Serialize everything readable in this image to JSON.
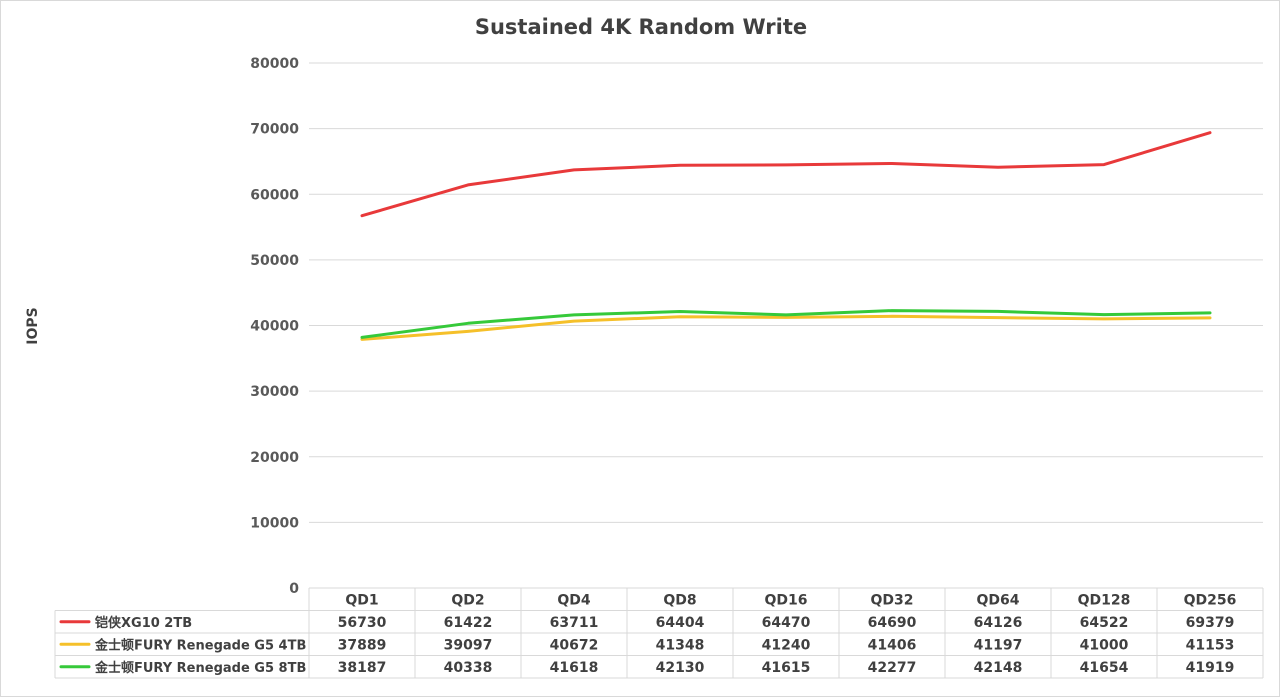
{
  "chart_data": {
    "type": "line",
    "title": "Sustained 4K Random Write",
    "xlabel": "",
    "ylabel": "IOPS",
    "ylim": [
      0,
      80000
    ],
    "yticks": [
      0,
      10000,
      20000,
      30000,
      40000,
      50000,
      60000,
      70000,
      80000
    ],
    "grid": true,
    "legend": "data-table-bottom",
    "categories": [
      "QD1",
      "QD2",
      "QD4",
      "QD8",
      "QD16",
      "QD32",
      "QD64",
      "QD128",
      "QD256"
    ],
    "series": [
      {
        "name": "铠侠XG10 2TB",
        "color": "#e8393a",
        "values": [
          56730,
          61422,
          63711,
          64404,
          64470,
          64690,
          64126,
          64522,
          69379
        ]
      },
      {
        "name": "金士顿FURY Renegade G5 4TB",
        "color": "#f5c02a",
        "values": [
          37889,
          39097,
          40672,
          41348,
          41240,
          41406,
          41197,
          41000,
          41153
        ]
      },
      {
        "name": "金士顿FURY Renegade G5 8TB",
        "color": "#36c93a",
        "values": [
          38187,
          40338,
          41618,
          42130,
          41615,
          42277,
          42148,
          41654,
          41919
        ]
      }
    ]
  }
}
